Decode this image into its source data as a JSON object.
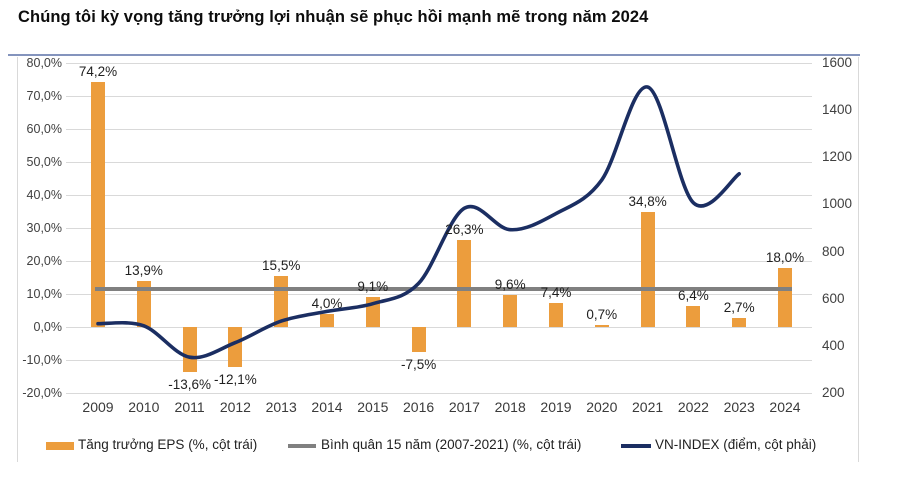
{
  "title": "Chúng tôi kỳ vọng tăng trưởng lợi nhuận sẽ phục hồi mạnh mẽ trong năm 2024",
  "colors": {
    "bar_orange": "#ec9d3d",
    "average_gray": "#808080",
    "vnindex_navy": "#1b2e62",
    "gridline": "#d9d9d9",
    "title_divider": "#8494bd",
    "axis_text": "#404040"
  },
  "chart_data": {
    "type": "bar",
    "subtype": "combo-bar-line-dual-axis",
    "categories": [
      "2009",
      "2010",
      "2011",
      "2012",
      "2013",
      "2014",
      "2015",
      "2016",
      "2017",
      "2018",
      "2019",
      "2020",
      "2021",
      "2022",
      "2023",
      "2024"
    ],
    "series": [
      {
        "name": "Tăng trưởng EPS (%, cột trái)",
        "type": "bar",
        "axis": "left",
        "color": "#ec9d3d",
        "values": [
          74.2,
          13.9,
          -13.6,
          -12.1,
          15.5,
          4.0,
          9.1,
          -7.5,
          26.3,
          9.6,
          7.4,
          0.7,
          34.8,
          6.4,
          2.7,
          18.0
        ],
        "labels": [
          "74,2%",
          "13,9%",
          "-13,6%",
          "-12,1%",
          "15,5%",
          "4,0%",
          "9,1%",
          "-7,5%",
          "26,3%",
          "9,6%",
          "7,4%",
          "0,7%",
          "34,8%",
          "6,4%",
          "2,7%",
          "18,0%"
        ]
      },
      {
        "name": "Bình quân 15 năm (2007-2021) (%, cột trái)",
        "type": "flat-line",
        "axis": "left",
        "color": "#808080",
        "value": 11.6
      },
      {
        "name": "VN-INDEX (điểm, cột phải)",
        "type": "line",
        "axis": "right",
        "color": "#1b2e62",
        "values": [
          494,
          485,
          352,
          414,
          505,
          546,
          579,
          665,
          984,
          893,
          961,
          1104,
          1498,
          1007,
          1130
        ]
      }
    ],
    "left_axis": {
      "min": -20,
      "max": 80,
      "tick_step": 10,
      "tick_labels": [
        "80,0%",
        "70,0%",
        "60,0%",
        "50,0%",
        "40,0%",
        "30,0%",
        "20,0%",
        "10,0%",
        "0,0%",
        "-10,0%",
        "-20,0%"
      ]
    },
    "right_axis": {
      "min": 200,
      "max": 1600,
      "tick_step": 200,
      "tick_labels": [
        "1600",
        "1400",
        "1200",
        "1000",
        "800",
        "600",
        "400",
        "200"
      ]
    },
    "grid": true,
    "legend_position": "bottom"
  }
}
